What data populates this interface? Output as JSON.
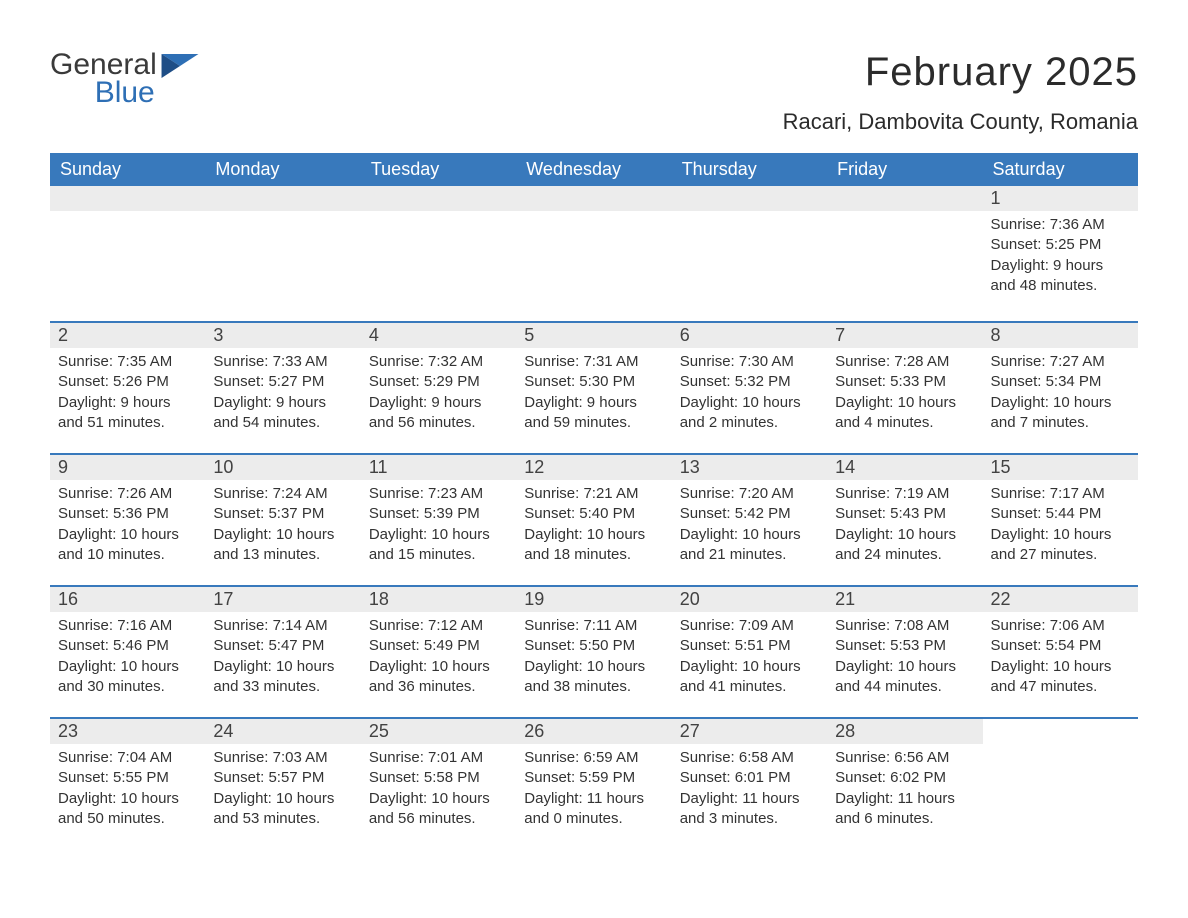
{
  "brand": {
    "word1": "General",
    "word2": "Blue"
  },
  "colors": {
    "header_bg": "#3879bc",
    "header_text": "#ffffff",
    "daynum_bg": "#ececec",
    "border": "#3879bc",
    "body_text": "#333333",
    "brand_blue": "#2e6fb5",
    "brand_dark": "#3a3a3a",
    "page_bg": "#ffffff"
  },
  "typography": {
    "title_fontsize": 40,
    "location_fontsize": 22,
    "header_fontsize": 18,
    "daynum_fontsize": 18,
    "details_fontsize": 15
  },
  "title": "February 2025",
  "location": "Racari, Dambovita County, Romania",
  "day_headers": [
    "Sunday",
    "Monday",
    "Tuesday",
    "Wednesday",
    "Thursday",
    "Friday",
    "Saturday"
  ],
  "weeks": [
    [
      {
        "day": ""
      },
      {
        "day": ""
      },
      {
        "day": ""
      },
      {
        "day": ""
      },
      {
        "day": ""
      },
      {
        "day": ""
      },
      {
        "day": "1",
        "sunrise": "Sunrise: 7:36 AM",
        "sunset": "Sunset: 5:25 PM",
        "daylight1": "Daylight: 9 hours",
        "daylight2": "and 48 minutes."
      }
    ],
    [
      {
        "day": "2",
        "sunrise": "Sunrise: 7:35 AM",
        "sunset": "Sunset: 5:26 PM",
        "daylight1": "Daylight: 9 hours",
        "daylight2": "and 51 minutes."
      },
      {
        "day": "3",
        "sunrise": "Sunrise: 7:33 AM",
        "sunset": "Sunset: 5:27 PM",
        "daylight1": "Daylight: 9 hours",
        "daylight2": "and 54 minutes."
      },
      {
        "day": "4",
        "sunrise": "Sunrise: 7:32 AM",
        "sunset": "Sunset: 5:29 PM",
        "daylight1": "Daylight: 9 hours",
        "daylight2": "and 56 minutes."
      },
      {
        "day": "5",
        "sunrise": "Sunrise: 7:31 AM",
        "sunset": "Sunset: 5:30 PM",
        "daylight1": "Daylight: 9 hours",
        "daylight2": "and 59 minutes."
      },
      {
        "day": "6",
        "sunrise": "Sunrise: 7:30 AM",
        "sunset": "Sunset: 5:32 PM",
        "daylight1": "Daylight: 10 hours",
        "daylight2": "and 2 minutes."
      },
      {
        "day": "7",
        "sunrise": "Sunrise: 7:28 AM",
        "sunset": "Sunset: 5:33 PM",
        "daylight1": "Daylight: 10 hours",
        "daylight2": "and 4 minutes."
      },
      {
        "day": "8",
        "sunrise": "Sunrise: 7:27 AM",
        "sunset": "Sunset: 5:34 PM",
        "daylight1": "Daylight: 10 hours",
        "daylight2": "and 7 minutes."
      }
    ],
    [
      {
        "day": "9",
        "sunrise": "Sunrise: 7:26 AM",
        "sunset": "Sunset: 5:36 PM",
        "daylight1": "Daylight: 10 hours",
        "daylight2": "and 10 minutes."
      },
      {
        "day": "10",
        "sunrise": "Sunrise: 7:24 AM",
        "sunset": "Sunset: 5:37 PM",
        "daylight1": "Daylight: 10 hours",
        "daylight2": "and 13 minutes."
      },
      {
        "day": "11",
        "sunrise": "Sunrise: 7:23 AM",
        "sunset": "Sunset: 5:39 PM",
        "daylight1": "Daylight: 10 hours",
        "daylight2": "and 15 minutes."
      },
      {
        "day": "12",
        "sunrise": "Sunrise: 7:21 AM",
        "sunset": "Sunset: 5:40 PM",
        "daylight1": "Daylight: 10 hours",
        "daylight2": "and 18 minutes."
      },
      {
        "day": "13",
        "sunrise": "Sunrise: 7:20 AM",
        "sunset": "Sunset: 5:42 PM",
        "daylight1": "Daylight: 10 hours",
        "daylight2": "and 21 minutes."
      },
      {
        "day": "14",
        "sunrise": "Sunrise: 7:19 AM",
        "sunset": "Sunset: 5:43 PM",
        "daylight1": "Daylight: 10 hours",
        "daylight2": "and 24 minutes."
      },
      {
        "day": "15",
        "sunrise": "Sunrise: 7:17 AM",
        "sunset": "Sunset: 5:44 PM",
        "daylight1": "Daylight: 10 hours",
        "daylight2": "and 27 minutes."
      }
    ],
    [
      {
        "day": "16",
        "sunrise": "Sunrise: 7:16 AM",
        "sunset": "Sunset: 5:46 PM",
        "daylight1": "Daylight: 10 hours",
        "daylight2": "and 30 minutes."
      },
      {
        "day": "17",
        "sunrise": "Sunrise: 7:14 AM",
        "sunset": "Sunset: 5:47 PM",
        "daylight1": "Daylight: 10 hours",
        "daylight2": "and 33 minutes."
      },
      {
        "day": "18",
        "sunrise": "Sunrise: 7:12 AM",
        "sunset": "Sunset: 5:49 PM",
        "daylight1": "Daylight: 10 hours",
        "daylight2": "and 36 minutes."
      },
      {
        "day": "19",
        "sunrise": "Sunrise: 7:11 AM",
        "sunset": "Sunset: 5:50 PM",
        "daylight1": "Daylight: 10 hours",
        "daylight2": "and 38 minutes."
      },
      {
        "day": "20",
        "sunrise": "Sunrise: 7:09 AM",
        "sunset": "Sunset: 5:51 PM",
        "daylight1": "Daylight: 10 hours",
        "daylight2": "and 41 minutes."
      },
      {
        "day": "21",
        "sunrise": "Sunrise: 7:08 AM",
        "sunset": "Sunset: 5:53 PM",
        "daylight1": "Daylight: 10 hours",
        "daylight2": "and 44 minutes."
      },
      {
        "day": "22",
        "sunrise": "Sunrise: 7:06 AM",
        "sunset": "Sunset: 5:54 PM",
        "daylight1": "Daylight: 10 hours",
        "daylight2": "and 47 minutes."
      }
    ],
    [
      {
        "day": "23",
        "sunrise": "Sunrise: 7:04 AM",
        "sunset": "Sunset: 5:55 PM",
        "daylight1": "Daylight: 10 hours",
        "daylight2": "and 50 minutes."
      },
      {
        "day": "24",
        "sunrise": "Sunrise: 7:03 AM",
        "sunset": "Sunset: 5:57 PM",
        "daylight1": "Daylight: 10 hours",
        "daylight2": "and 53 minutes."
      },
      {
        "day": "25",
        "sunrise": "Sunrise: 7:01 AM",
        "sunset": "Sunset: 5:58 PM",
        "daylight1": "Daylight: 10 hours",
        "daylight2": "and 56 minutes."
      },
      {
        "day": "26",
        "sunrise": "Sunrise: 6:59 AM",
        "sunset": "Sunset: 5:59 PM",
        "daylight1": "Daylight: 11 hours",
        "daylight2": "and 0 minutes."
      },
      {
        "day": "27",
        "sunrise": "Sunrise: 6:58 AM",
        "sunset": "Sunset: 6:01 PM",
        "daylight1": "Daylight: 11 hours",
        "daylight2": "and 3 minutes."
      },
      {
        "day": "28",
        "sunrise": "Sunrise: 6:56 AM",
        "sunset": "Sunset: 6:02 PM",
        "daylight1": "Daylight: 11 hours",
        "daylight2": "and 6 minutes."
      },
      {
        "day": ""
      }
    ]
  ]
}
